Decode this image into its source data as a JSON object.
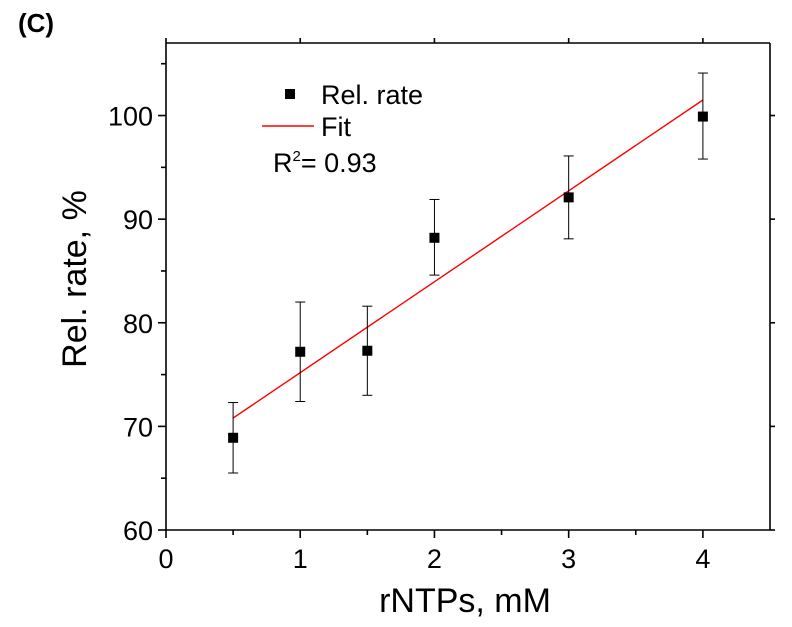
{
  "panel_label": "(C)",
  "chart_data": {
    "type": "scatter",
    "x_label": "rNTPs, mM",
    "y_label": "Rel. rate, %",
    "xlim": [
      0,
      4.5
    ],
    "ylim": [
      60,
      107
    ],
    "x_ticks": [
      0,
      1,
      2,
      3,
      4
    ],
    "y_ticks": [
      60,
      70,
      80,
      90,
      100
    ],
    "grid": false,
    "legend_position": "top-left",
    "series": [
      {
        "name": "Rel. rate",
        "kind": "scatter",
        "marker": "square",
        "color": "#000000",
        "points": [
          {
            "x": 0.5,
            "y": 68.9,
            "err_low": 65.5,
            "err_high": 72.3
          },
          {
            "x": 1.0,
            "y": 77.2,
            "err_low": 72.4,
            "err_high": 82.0
          },
          {
            "x": 1.5,
            "y": 77.3,
            "err_low": 73.0,
            "err_high": 81.6
          },
          {
            "x": 2.0,
            "y": 88.2,
            "err_low": 84.6,
            "err_high": 91.9
          },
          {
            "x": 3.0,
            "y": 92.1,
            "err_low": 88.1,
            "err_high": 96.1
          },
          {
            "x": 4.0,
            "y": 99.9,
            "err_low": 95.8,
            "err_high": 104.1
          }
        ]
      },
      {
        "name": "Fit",
        "kind": "line",
        "color": "#ff0000",
        "x": [
          0.5,
          4.0
        ],
        "y": [
          70.8,
          101.5
        ]
      }
    ],
    "annotation": {
      "prefix": "R",
      "superscript": "2",
      "text": "= 0.93"
    }
  }
}
